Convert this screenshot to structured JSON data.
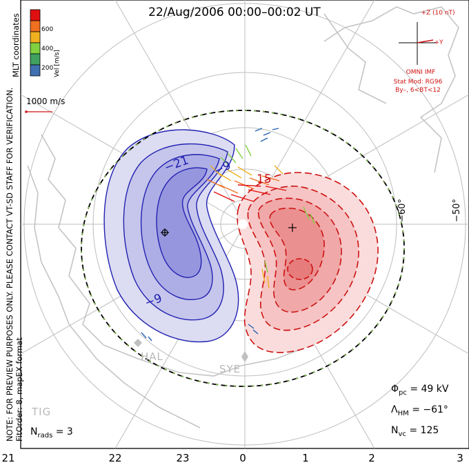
{
  "title": "22/Aug/2006 00:00–00:02 UT",
  "note_line1": "NOTE: FOR PREVIEW PURPOSES ONLY. PLEASE CONTACT VT-SD STAFF FOR VERIFICATION.",
  "note_line2": "FitOrder: 8,  mapEX format",
  "coords_label": "MLT coordinates",
  "colorbar": {
    "label": "Vel [m/s]",
    "ticks": [
      "600",
      "400",
      "200"
    ],
    "colors": [
      "#e01010",
      "#f07020",
      "#f0b020",
      "#80d040",
      "#40a060",
      "#4070b0"
    ]
  },
  "ref_vector_label": "1000 m/s",
  "imf": {
    "z_label": "+Z (10 nT)",
    "y_label": "+Y",
    "source": "OMNI IMF",
    "model": "Stat Mod: RG96",
    "condition": "By–, 6<BT<12"
  },
  "stats": {
    "phi_pc": "Φ",
    "phi_pc_sub": "pc",
    "phi_pc_value": "= 49 kV",
    "lambda": "Λ",
    "lambda_sub": "HM",
    "lambda_value": "= −61°",
    "nvc": "N",
    "nvc_sub": "vc",
    "nvc_value": "= 125",
    "nrads": "N",
    "nrads_sub": "rads",
    "nrads_value": "= 3"
  },
  "mlt_labels": [
    "21",
    "22",
    "23",
    "0",
    "1",
    "2",
    "3"
  ],
  "lat_labels": [
    "−60°",
    "−50°"
  ],
  "contour_labels": [
    "−21",
    "−9",
    "−9",
    "15"
  ],
  "stations": [
    "HAL",
    "SYE",
    "TIG"
  ]
}
